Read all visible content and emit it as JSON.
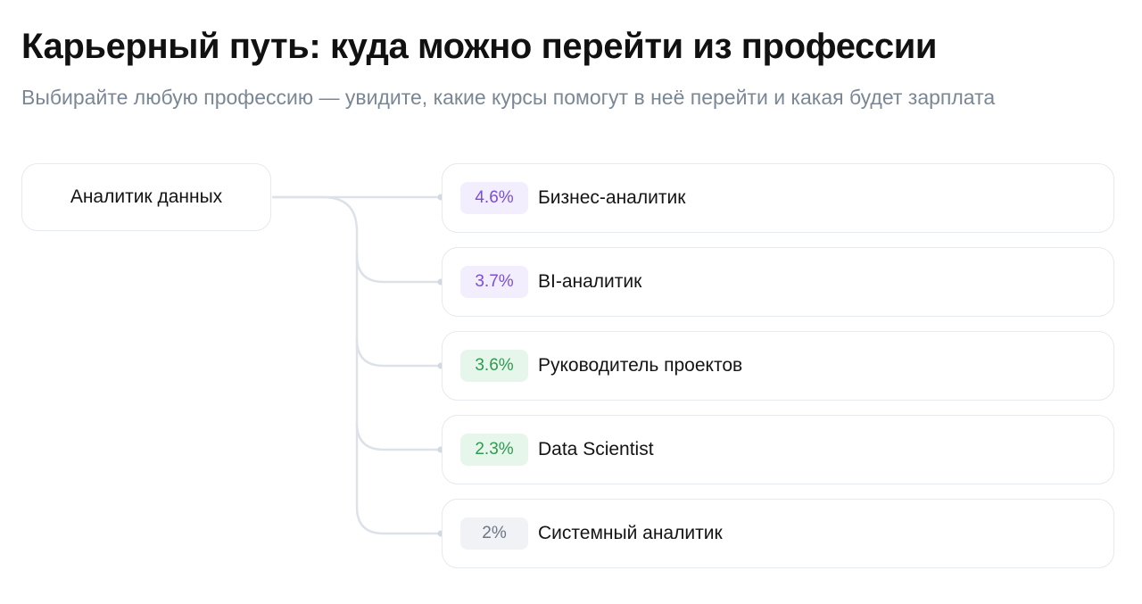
{
  "header": {
    "title": "Карьерный путь: куда можно перейти из профессии",
    "subtitle": "Выбирайте любую профессию — увидите, какие курсы помогут в неё перейти и какая будет зарплата"
  },
  "source": {
    "label": "Аналитик данных"
  },
  "targets": [
    {
      "percent": "4.6%",
      "label": "Бизнес-аналитик",
      "badge_color": "#7a4fd6"
    },
    {
      "percent": "3.7%",
      "label": "BI-аналитик",
      "badge_color": "#7a4fd6"
    },
    {
      "percent": "3.6%",
      "label": "Руководитель проектов",
      "badge_color": "#2f9a51"
    },
    {
      "percent": "2.3%",
      "label": "Data Scientist",
      "badge_color": "#2f9a51"
    },
    {
      "percent": "2%",
      "label": "Системный аналитик",
      "badge_color": "#6c7682"
    }
  ]
}
